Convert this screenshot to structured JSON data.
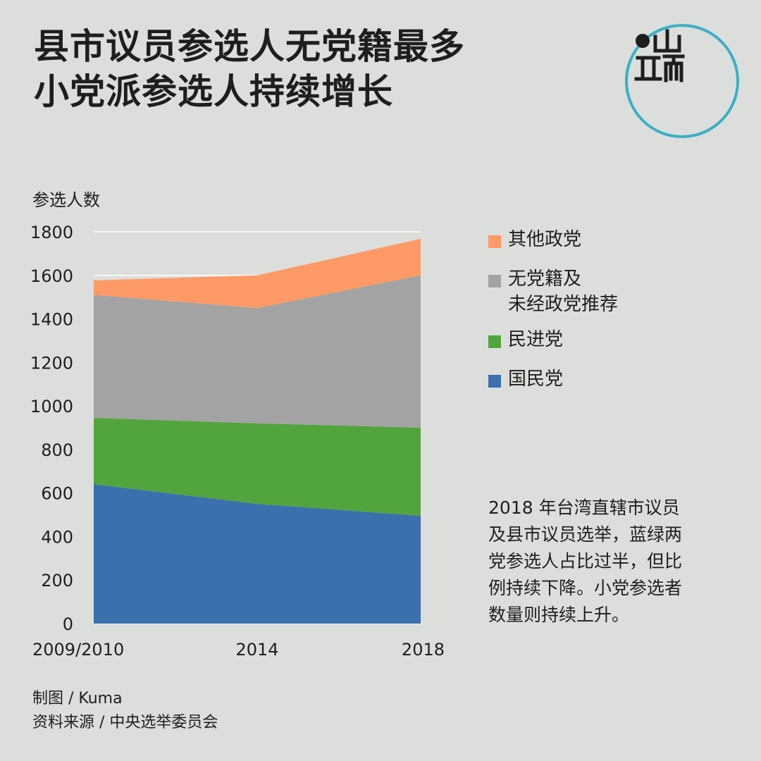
{
  "title": {
    "line1": "县市议员参选人无党籍最多",
    "line2": "小党派参选人持续增长"
  },
  "logo": {
    "name": "端传媒 logo",
    "accent_color": "#3ab0c4"
  },
  "axis_label": "参选人数",
  "legend": [
    {
      "key": "other",
      "lines": [
        "其他政党"
      ],
      "color": "#ff9a66"
    },
    {
      "key": "independent",
      "lines": [
        "无党籍及",
        "未经政党推荐"
      ],
      "color": "#a3a3a3"
    },
    {
      "key": "dpp",
      "lines": [
        "民进党"
      ],
      "color": "#52a43c"
    },
    {
      "key": "kmt",
      "lines": [
        "国民党"
      ],
      "color": "#3b6fae"
    }
  ],
  "note": {
    "lines": [
      "2018 年台湾直辖市议员",
      "及县市议员选举，蓝绿两",
      "党参选人占比过半，但比",
      "例持续下降。小党参选者",
      "数量则持续上升。"
    ]
  },
  "credits": {
    "author": "制图 / Kuma",
    "source": "资料来源 / 中央选举委员会"
  },
  "chart_data": {
    "type": "area",
    "stacked": true,
    "title": "县市议员参选人无党籍最多 小党派参选人持续增长",
    "ylabel": "参选人数",
    "xlabel": "",
    "categories": [
      "2009/2010",
      "2014",
      "2018"
    ],
    "ylim": [
      0,
      1800
    ],
    "yticks": [
      0,
      200,
      400,
      600,
      800,
      1000,
      1200,
      1400,
      1600,
      1800
    ],
    "grid": true,
    "legend_position": "right",
    "series": [
      {
        "name": "国民党",
        "color": "#3b6fae",
        "values": [
          640,
          550,
          495
        ]
      },
      {
        "name": "民进党",
        "color": "#52a43c",
        "values": [
          305,
          370,
          405
        ]
      },
      {
        "name": "无党籍及未经政党推荐",
        "color": "#a3a3a3",
        "values": [
          565,
          530,
          700
        ]
      },
      {
        "name": "其他政党",
        "color": "#ff9a66",
        "values": [
          67,
          150,
          168
        ]
      }
    ]
  }
}
